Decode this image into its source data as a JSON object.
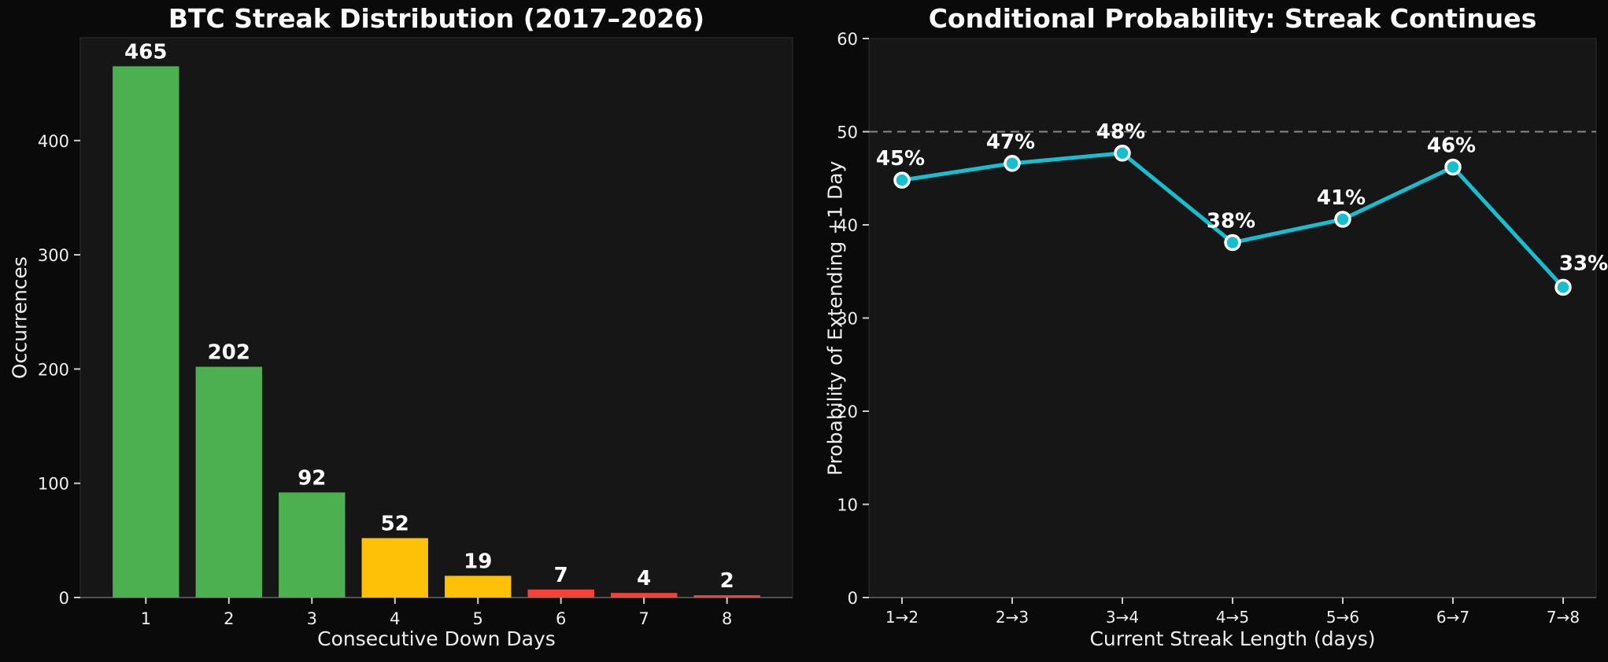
{
  "figure": {
    "background": "#0a0a0a",
    "axes_background": "#161616",
    "text_color": "#eeeeee",
    "title_color": "#ffffff"
  },
  "colors": {
    "green": "#4caf50",
    "amber": "#ffc107",
    "red": "#f44336",
    "cyan": "#17becf",
    "marker_edge": "#ffffff",
    "reference_dash": "#888888",
    "spine": "#2f2f2f",
    "axis_line": "#505050",
    "tick": "#cccccc"
  },
  "chart_data": [
    {
      "type": "bar",
      "title": "BTC Streak Distribution (2017–2026)",
      "xlabel": "Consecutive Down Days",
      "ylabel": "Occurrences",
      "categories": [
        "1",
        "2",
        "3",
        "4",
        "5",
        "6",
        "7",
        "8"
      ],
      "values": [
        465,
        202,
        92,
        52,
        19,
        7,
        4,
        2
      ],
      "value_labels": [
        "465",
        "202",
        "92",
        "52",
        "19",
        "7",
        "4",
        "2"
      ],
      "bar_colors": [
        "#4caf50",
        "#4caf50",
        "#4caf50",
        "#ffc107",
        "#ffc107",
        "#f44336",
        "#f44336",
        "#f44336"
      ],
      "yticks": [
        0,
        100,
        200,
        300,
        400
      ],
      "ylim": [
        0,
        490
      ],
      "grid": false,
      "legend": null
    },
    {
      "type": "line",
      "title": "Conditional Probability: Streak Continues",
      "xlabel": "Current Streak Length (days)",
      "ylabel": "Probability of Extending +1 Day",
      "categories": [
        "1→2",
        "2→3",
        "3→4",
        "4→5",
        "5→6",
        "6→7",
        "7→8"
      ],
      "values": [
        44.8,
        46.6,
        47.7,
        38.1,
        40.6,
        46.2,
        33.3
      ],
      "point_labels": [
        "45%",
        "47%",
        "48%",
        "38%",
        "41%",
        "46%",
        "33%"
      ],
      "yticks": [
        0,
        10,
        20,
        30,
        40,
        50,
        60
      ],
      "ylim": [
        0,
        60
      ],
      "line_color": "#17becf",
      "marker_fill": "#17becf",
      "marker_edge": "#ffffff",
      "reference_line": {
        "y": 50,
        "style": "dashed",
        "color": "#888888"
      },
      "grid": false,
      "legend": null
    }
  ]
}
